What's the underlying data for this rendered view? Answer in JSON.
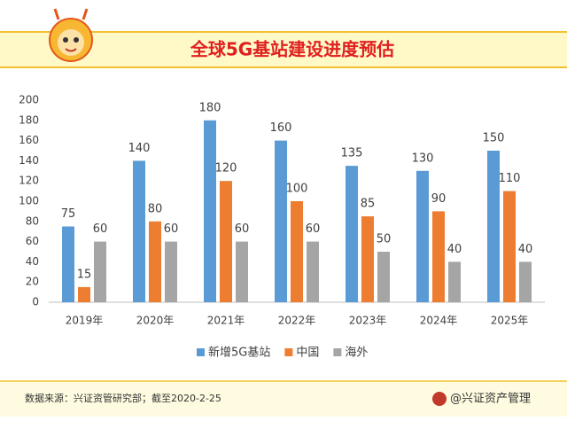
{
  "chart_data": {
    "type": "bar",
    "title": "全球5G基站建设进度预估",
    "categories": [
      "2019年",
      "2020年",
      "2021年",
      "2022年",
      "2023年",
      "2024年",
      "2025年"
    ],
    "series": [
      {
        "name": "新增5G基站",
        "color": "#5b9bd5",
        "values": [
          75,
          140,
          180,
          160,
          135,
          130,
          150
        ]
      },
      {
        "name": "中国",
        "color": "#ed7d31",
        "values": [
          15,
          80,
          120,
          100,
          85,
          90,
          110
        ]
      },
      {
        "name": "海外",
        "color": "#a5a5a5",
        "values": [
          60,
          60,
          60,
          60,
          50,
          40,
          40
        ]
      }
    ],
    "ylim": [
      0,
      200
    ],
    "yticks": [
      0,
      20,
      40,
      60,
      80,
      100,
      120,
      140,
      160,
      180,
      200
    ],
    "grid": false,
    "legend": "bottom",
    "source": "数据来源：兴证资管研究部；截至2020-2-25",
    "brand": "@兴证资产管理"
  }
}
